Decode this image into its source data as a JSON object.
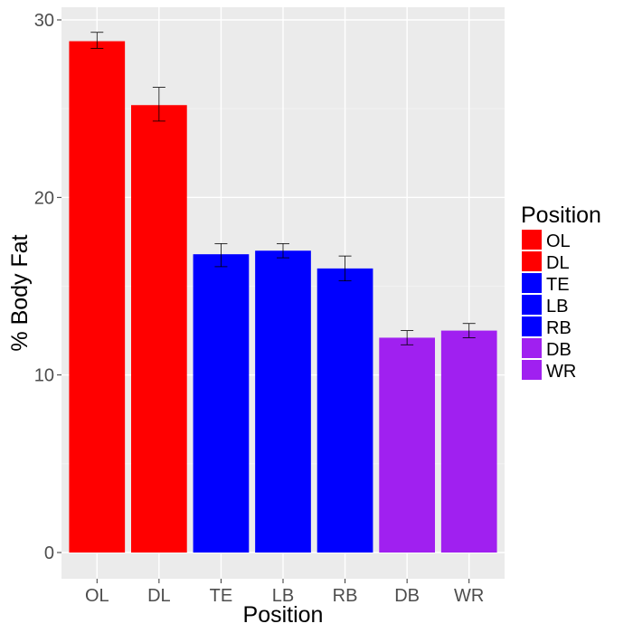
{
  "chart_data": {
    "type": "bar",
    "title": "",
    "xlabel": "Position",
    "ylabel": "% Body Fat",
    "categories": [
      "OL",
      "DL",
      "TE",
      "LB",
      "RB",
      "DB",
      "WR"
    ],
    "values": [
      28.8,
      25.2,
      16.8,
      17.0,
      16.0,
      12.1,
      12.5
    ],
    "error_low": [
      28.4,
      24.3,
      16.1,
      16.6,
      15.3,
      11.7,
      12.1
    ],
    "error_high": [
      29.3,
      26.2,
      17.4,
      17.4,
      16.7,
      12.5,
      12.9
    ],
    "bar_colors": [
      "#ff0000",
      "#ff0000",
      "#0000ff",
      "#0000ff",
      "#0000ff",
      "#a020f0",
      "#a020f0"
    ],
    "ylim": [
      0,
      30
    ],
    "yticks": [
      0,
      10,
      20,
      30
    ],
    "grid": true,
    "panel_background": "#ebebeb",
    "legend": {
      "title": "Position",
      "placement": "right",
      "entries": [
        {
          "label": "OL",
          "color": "#ff0000"
        },
        {
          "label": "DL",
          "color": "#ff0000"
        },
        {
          "label": "TE",
          "color": "#0000ff"
        },
        {
          "label": "LB",
          "color": "#0000ff"
        },
        {
          "label": "RB",
          "color": "#0000ff"
        },
        {
          "label": "DB",
          "color": "#a020f0"
        },
        {
          "label": "WR",
          "color": "#a020f0"
        }
      ]
    }
  }
}
